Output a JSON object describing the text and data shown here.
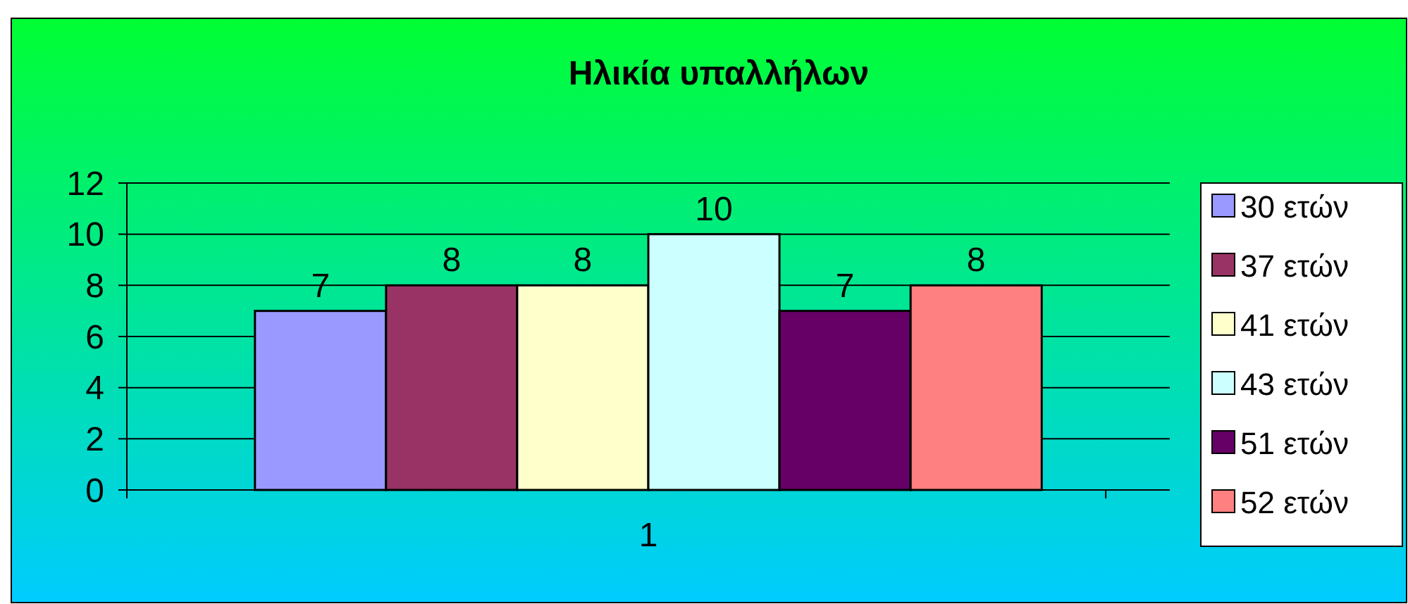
{
  "chart_data": {
    "type": "bar",
    "title": "Ηλικία υπαλλήλων",
    "categories": [
      "1"
    ],
    "series": [
      {
        "name": "30 ετών",
        "color": "#9999ff",
        "values": [
          7
        ]
      },
      {
        "name": "37 ετών",
        "color": "#993366",
        "values": [
          8
        ]
      },
      {
        "name": "41 ετών",
        "color": "#ffffcc",
        "values": [
          8
        ]
      },
      {
        "name": "43 ετών",
        "color": "#ccffff",
        "values": [
          10
        ]
      },
      {
        "name": "51 ετών",
        "color": "#660066",
        "values": [
          7
        ]
      },
      {
        "name": "52 ετών",
        "color": "#ff8080",
        "values": [
          8
        ]
      }
    ],
    "ylim": [
      0,
      12
    ],
    "yticks": [
      0,
      2,
      4,
      6,
      8,
      10,
      12
    ],
    "grid": "y",
    "legend": "right",
    "data_labels": true
  }
}
